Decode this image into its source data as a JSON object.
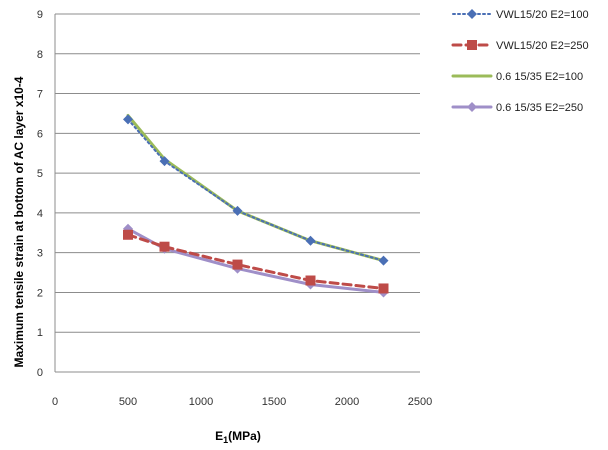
{
  "chart_data": {
    "type": "line",
    "title": "",
    "xlabel": "E1(MPa)",
    "xlabel_main": "E",
    "xlabel_sub": "1",
    "xlabel_rest": "(MPa)",
    "ylabel": "Maximum tensile strain at bottom of AC layer x10-4",
    "xlim": [
      0,
      2500
    ],
    "ylim": [
      0,
      9
    ],
    "xticks": [
      0,
      500,
      1000,
      1500,
      2000,
      2500
    ],
    "yticks": [
      0,
      1,
      2,
      3,
      4,
      5,
      6,
      7,
      8,
      9
    ],
    "grid": "horizontal",
    "legend_position": "right",
    "series": [
      {
        "name": "VWL15/20  E2=100",
        "x": [
          500,
          750,
          1250,
          1750,
          2250
        ],
        "values": [
          6.35,
          5.3,
          4.05,
          3.3,
          2.8
        ],
        "color": "#4a6fb5",
        "marker": "diamond",
        "line": "dotted"
      },
      {
        "name": "VWL15/20  E2=250",
        "x": [
          500,
          750,
          1250,
          1750,
          2250
        ],
        "values": [
          3.45,
          3.15,
          2.7,
          2.3,
          2.1
        ],
        "color": "#be4b48",
        "marker": "square",
        "line": "dashed"
      },
      {
        "name": "0.6  15/35   E2=100",
        "x": [
          500,
          750,
          1250,
          1750,
          2250
        ],
        "values": [
          6.45,
          5.35,
          4.05,
          3.3,
          2.8
        ],
        "color": "#9bbb59",
        "marker": "none",
        "line": "solid"
      },
      {
        "name": "0.6  15/35   E2=250",
        "x": [
          500,
          750,
          1250,
          1750,
          2250
        ],
        "values": [
          3.6,
          3.1,
          2.6,
          2.2,
          2.0
        ],
        "color": "#9f8fc8",
        "marker": "diamond",
        "line": "solid"
      }
    ]
  }
}
